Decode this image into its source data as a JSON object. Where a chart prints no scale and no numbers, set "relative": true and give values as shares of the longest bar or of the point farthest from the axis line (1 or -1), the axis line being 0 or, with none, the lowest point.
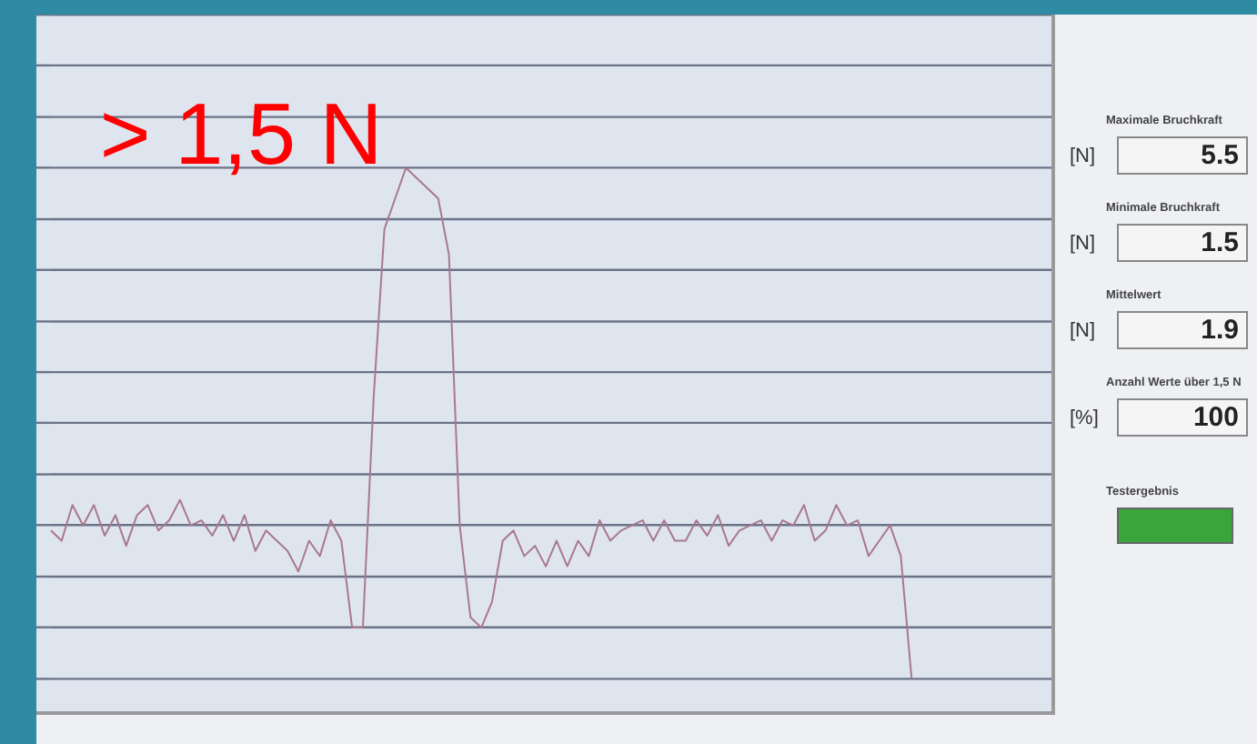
{
  "chart_data": [
    {
      "type": "line",
      "relative": true,
      "grid": "y",
      "marker": "none",
      "line_style": "solid",
      "color": "#a8788c",
      "annotations": [
        {
          "text": "> 1,5 N"
        }
      ],
      "categories": [
        null,
        null,
        null,
        null,
        null,
        null,
        null,
        null,
        null,
        null,
        null,
        null,
        null,
        null,
        null,
        null,
        null,
        null,
        null,
        null,
        null,
        null,
        null,
        null,
        null,
        null,
        null,
        null,
        null,
        null,
        null,
        null,
        null,
        null,
        null,
        null,
        null,
        null,
        null,
        null,
        null,
        null,
        null,
        null,
        null,
        null,
        null,
        null,
        null,
        null,
        null,
        null,
        null,
        null,
        null,
        null,
        null,
        null,
        null,
        null,
        null,
        null,
        null,
        null,
        null,
        null,
        null,
        null,
        null,
        null,
        null,
        null,
        null,
        null,
        null,
        null,
        null,
        null,
        null,
        null,
        null,
        null,
        null,
        null,
        null,
        null,
        null,
        null,
        null,
        null,
        null,
        null,
        null,
        null
      ],
      "values": [
        0.29,
        0.27,
        0.34,
        0.3,
        0.34,
        0.28,
        0.32,
        0.26,
        0.32,
        0.34,
        0.29,
        0.31,
        0.35,
        0.3,
        0.31,
        0.28,
        0.32,
        0.27,
        0.32,
        0.25,
        0.29,
        0.27,
        0.25,
        0.21,
        0.27,
        0.24,
        0.31,
        0.27,
        0.1,
        0.1,
        0.55,
        0.88,
        0.94,
        1,
        0.98,
        0.96,
        0.94,
        0.83,
        0.3,
        0.12,
        0.1,
        0.15,
        0.27,
        0.29,
        0.24,
        0.26,
        0.22,
        0.27,
        0.22,
        0.27,
        0.24,
        0.31,
        0.27,
        0.29,
        0.3,
        0.31,
        0.27,
        0.31,
        0.27,
        0.27,
        0.31,
        0.28,
        0.32,
        0.26,
        0.29,
        0.3,
        0.31,
        0.27,
        0.31,
        0.3,
        0.34,
        0.27,
        0.29,
        0.34,
        0.3,
        0.31,
        0.24,
        0.27,
        0.3,
        0.24,
        0,
        null,
        null,
        null,
        null,
        null,
        null,
        null,
        null,
        null,
        null,
        null,
        null,
        null
      ]
    },
    {
      "type": "other",
      "annotations": [
        "Maximale Bruchkraft",
        "[N]",
        "5.5",
        "Minimale Bruchkraft",
        "[N]",
        "1.5",
        "Mittelwert",
        "[N]",
        "1.9",
        "Anzahl Werte über 1,5 N",
        "[%]",
        "100",
        "Testergebnis"
      ]
    }
  ]
}
